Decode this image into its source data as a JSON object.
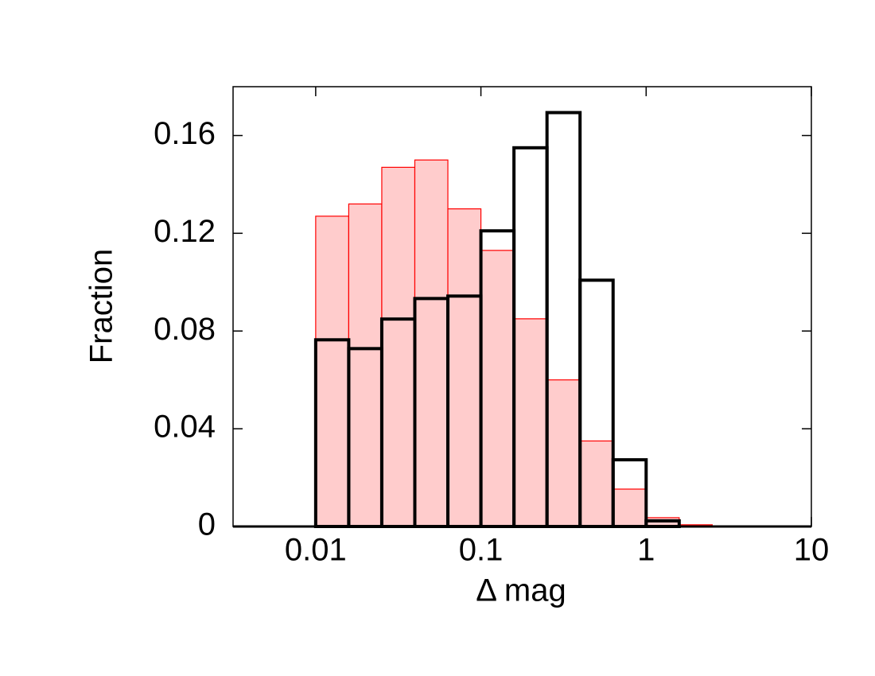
{
  "chart_data": {
    "type": "histogram",
    "xlabel": "Δ mag",
    "ylabel": "Fraction",
    "log_x": true,
    "bins": [
      0.01,
      0.01585,
      0.02512,
      0.03981,
      0.0631,
      0.1,
      0.1585,
      0.2512,
      0.3981,
      0.631,
      1,
      1.585,
      2.512
    ],
    "series": [
      {
        "color": "#ff0000",
        "fill": "#ffcccc",
        "values": [
          0.127,
          0.132,
          0.147,
          0.15,
          0.13,
          0.113,
          0.085,
          0.06,
          0.035,
          0.0153,
          0.0036,
          0.0007
        ]
      },
      {
        "color": "#000000",
        "values": [
          0.0764,
          0.0728,
          0.0849,
          0.0933,
          0.0943,
          0.121,
          0.155,
          0.1694,
          0.1008,
          0.0273,
          0.0023,
          0
        ]
      }
    ],
    "xlim": [
      0.003162,
      10
    ],
    "xticks": [
      0.01,
      0.1,
      1,
      10
    ],
    "ylim": [
      0,
      0.18
    ],
    "yticks": [
      0,
      0.04,
      0.08,
      0.12,
      0.16
    ]
  }
}
